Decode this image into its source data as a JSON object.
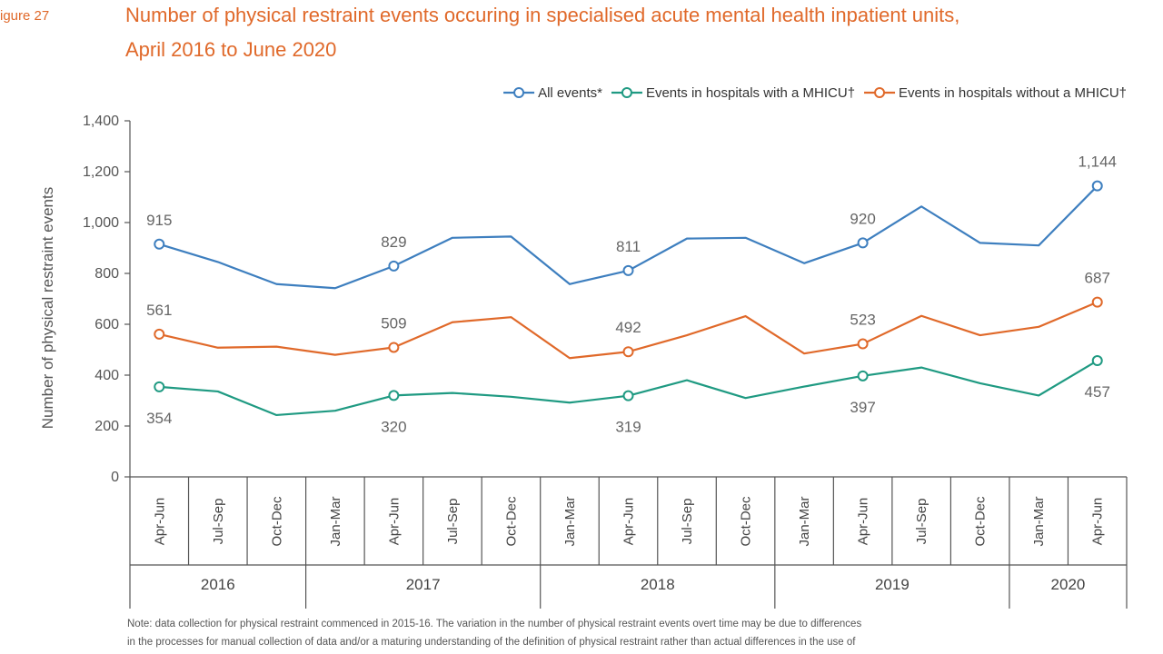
{
  "figure_label": "igure 27",
  "title_line1": "Number of physical restraint events occuring in specialised acute mental health inpatient units,",
  "title_line2": "April 2016 to June 2020",
  "note_line1": "Note: data collection for physical restraint commenced in 2015-16. The variation in the number of physical restraint events overt time may be due to differences",
  "note_line2": "in the processes for manual collection of data and/or a maturing understanding of the definition of physical restraint rather than actual differences in the use of",
  "colors": {
    "all": "#3e7fbf",
    "with": "#1f9a82",
    "without": "#e0692a",
    "title": "#e0692a"
  },
  "chart_data": {
    "type": "line",
    "ylabel": "Number of physical restraint events",
    "ylim": [
      0,
      1400
    ],
    "yticks": [
      0,
      200,
      400,
      600,
      800,
      1000,
      1200,
      1400
    ],
    "ytick_labels": [
      "0",
      "200",
      "400",
      "600",
      "800",
      "1,000",
      "1,200",
      "1,400"
    ],
    "categories": [
      "Apr-Jun",
      "Jul-Sep",
      "Oct-Dec",
      "Jan-Mar",
      "Apr-Jun",
      "Jul-Sep",
      "Oct-Dec",
      "Jan-Mar",
      "Apr-Jun",
      "Jul-Sep",
      "Oct-Dec",
      "Jan-Mar",
      "Apr-Jun",
      "Jul-Sep",
      "Oct-Dec",
      "Jan-Mar",
      "Apr-Jun"
    ],
    "year_groups": [
      {
        "label": "2016",
        "start": 0,
        "end": 2
      },
      {
        "label": "2017",
        "start": 3,
        "end": 6
      },
      {
        "label": "2018",
        "start": 7,
        "end": 10
      },
      {
        "label": "2019",
        "start": 11,
        "end": 14
      },
      {
        "label": "2020",
        "start": 15,
        "end": 16
      }
    ],
    "legend_position": "top-right",
    "grid": false,
    "series": [
      {
        "key": "all",
        "name": "All events*",
        "values": [
          915,
          845,
          758,
          742,
          829,
          940,
          945,
          758,
          811,
          937,
          940,
          840,
          920,
          1063,
          920,
          910,
          1144
        ],
        "marker_indices": [
          0,
          4,
          8,
          12,
          16
        ],
        "labels": [
          {
            "index": 0,
            "text": "915",
            "pos": "above"
          },
          {
            "index": 4,
            "text": "829",
            "pos": "above"
          },
          {
            "index": 8,
            "text": "811",
            "pos": "above"
          },
          {
            "index": 12,
            "text": "920",
            "pos": "above"
          },
          {
            "index": 16,
            "text": "1,144",
            "pos": "above"
          }
        ]
      },
      {
        "key": "with",
        "name": "Events in hospitals with a MHICU†",
        "values": [
          354,
          336,
          243,
          260,
          320,
          330,
          315,
          292,
          319,
          380,
          310,
          355,
          397,
          430,
          368,
          320,
          457
        ],
        "marker_indices": [
          0,
          4,
          8,
          12,
          16
        ],
        "labels": [
          {
            "index": 0,
            "text": "354",
            "pos": "below"
          },
          {
            "index": 4,
            "text": "320",
            "pos": "below"
          },
          {
            "index": 8,
            "text": "319",
            "pos": "below"
          },
          {
            "index": 12,
            "text": "397",
            "pos": "below"
          },
          {
            "index": 16,
            "text": "457",
            "pos": "below"
          }
        ]
      },
      {
        "key": "without",
        "name": "Events in hospitals without a MHICU†",
        "values": [
          561,
          508,
          512,
          480,
          509,
          608,
          628,
          467,
          492,
          557,
          632,
          485,
          523,
          633,
          557,
          590,
          687
        ],
        "marker_indices": [
          0,
          4,
          8,
          12,
          16
        ],
        "labels": [
          {
            "index": 0,
            "text": "561",
            "pos": "above"
          },
          {
            "index": 4,
            "text": "509",
            "pos": "above"
          },
          {
            "index": 8,
            "text": "492",
            "pos": "above"
          },
          {
            "index": 12,
            "text": "523",
            "pos": "above"
          },
          {
            "index": 16,
            "text": "687",
            "pos": "above"
          }
        ]
      }
    ]
  }
}
